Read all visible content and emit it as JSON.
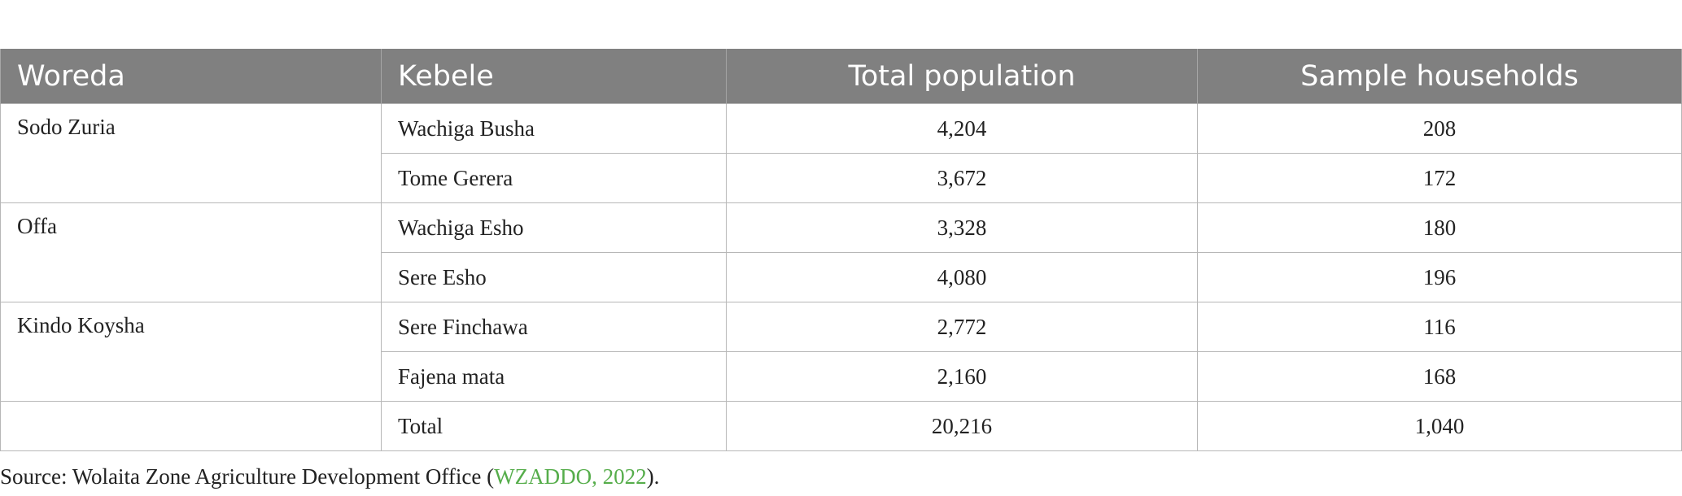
{
  "table": {
    "headers": [
      "Woreda",
      "Kebele",
      "Total population",
      "Sample households"
    ],
    "groups": [
      {
        "woreda": "Sodo Zuria",
        "rows": [
          {
            "kebele": "Wachiga Busha",
            "population": "4,204",
            "households": "208"
          },
          {
            "kebele": "Tome Gerera",
            "population": "3,672",
            "households": "172"
          }
        ]
      },
      {
        "woreda": "Offa",
        "rows": [
          {
            "kebele": "Wachiga Esho",
            "population": "3,328",
            "households": "180"
          },
          {
            "kebele": "Sere Esho",
            "population": "4,080",
            "households": "196"
          }
        ]
      },
      {
        "woreda": "Kindo Koysha",
        "rows": [
          {
            "kebele": "Sere Finchawa",
            "population": "2,772",
            "households": "116"
          },
          {
            "kebele": "Fajena mata",
            "population": "2,160",
            "households": "168"
          }
        ]
      }
    ],
    "total": {
      "woreda": "",
      "kebele": "Total",
      "population": "20,216",
      "households": "1,040"
    }
  },
  "source": {
    "prefix": "Source: Wolaita Zone Agriculture Development Office (",
    "link_text": "WZADDO, 2022",
    "suffix": ")."
  },
  "colors": {
    "header_bg": "#808080",
    "header_text": "#ffffff",
    "link": "#56ad4b"
  }
}
